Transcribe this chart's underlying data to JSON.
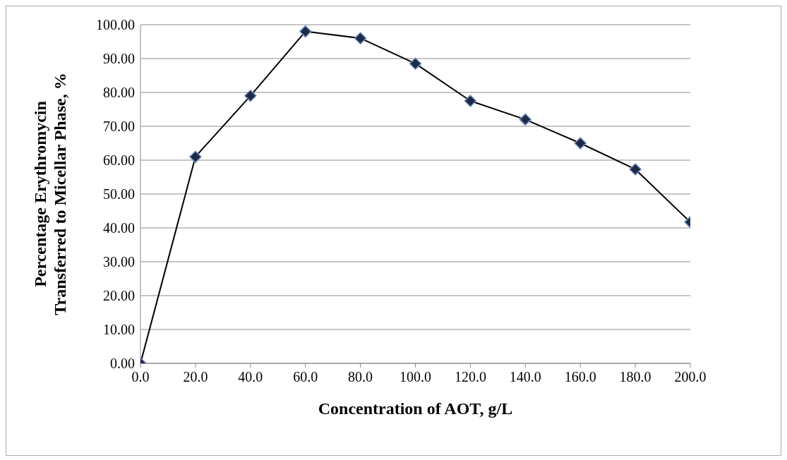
{
  "chart_data": {
    "type": "line",
    "xlabel": "Concentration of AOT, g/L",
    "ylabel": "Percentage Erythromycin\nTransferred  to Micellar Phase, %",
    "categories": [
      "0.0",
      "20.0",
      "40.0",
      "60.0",
      "80.0",
      "100.0",
      "120.0",
      "140.0",
      "160.0",
      "180.0",
      "200.0"
    ],
    "series": [
      {
        "color": "#1f2a44",
        "values": [
          0,
          61,
          79,
          98,
          96,
          88.5,
          77.5,
          72,
          65,
          57.3,
          41.7
        ]
      }
    ],
    "ylim": [
      0,
      100
    ],
    "yticks": [
      {
        "value": 0,
        "label": "0.00"
      },
      {
        "value": 10,
        "label": "10.00"
      },
      {
        "value": 20,
        "label": "20.00"
      },
      {
        "value": 30,
        "label": "30.00"
      },
      {
        "value": 40,
        "label": "40.00"
      },
      {
        "value": 50,
        "label": "50.00"
      },
      {
        "value": 60,
        "label": "60.00"
      },
      {
        "value": 70,
        "label": "70.00"
      },
      {
        "value": 80,
        "label": "80.00"
      },
      {
        "value": 90,
        "label": "90.00"
      },
      {
        "value": 100,
        "label": "100.00"
      }
    ],
    "grid": "y",
    "marker": "diamond",
    "line_style": "solid",
    "legend": false
  }
}
